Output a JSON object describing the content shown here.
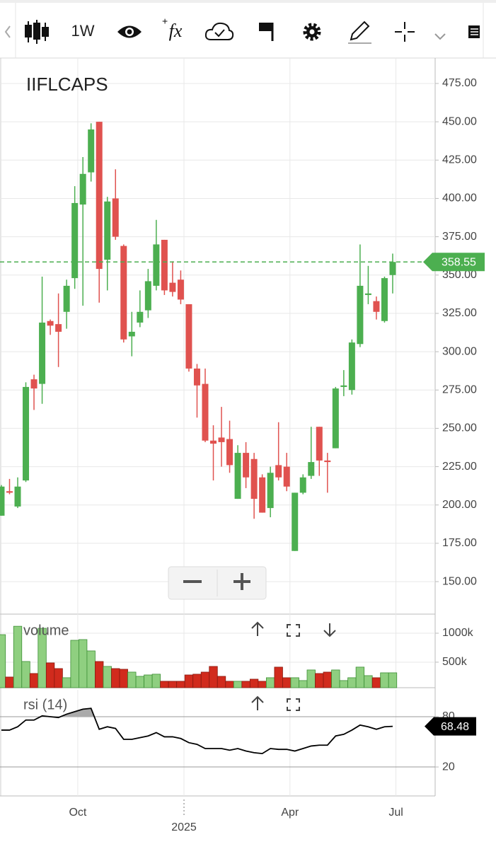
{
  "toolbar": {
    "timeframe": "1W",
    "formula": "fx"
  },
  "chart_data": [
    {
      "type": "candlestick",
      "title": "IIFLCAPS",
      "x": [
        0,
        1,
        2,
        3,
        4,
        5,
        6,
        7,
        8,
        9,
        10,
        11,
        12,
        13,
        14,
        15,
        16,
        17,
        18,
        19,
        20,
        21,
        22,
        23,
        24,
        25,
        26,
        27,
        28,
        29,
        30,
        31,
        32,
        33,
        34,
        35,
        36,
        37,
        38,
        39,
        40,
        41,
        42,
        43,
        44,
        45,
        46,
        47,
        48
      ],
      "open": [
        193,
        209,
        199,
        216,
        282,
        279,
        320,
        318,
        326,
        348,
        396,
        417,
        450,
        360,
        400,
        369,
        310,
        319,
        327,
        343,
        373,
        345,
        347,
        331,
        289,
        279,
        242,
        244,
        243,
        204,
        234,
        230,
        218,
        198,
        226,
        225,
        170,
        208,
        219,
        251,
        229,
        237,
        277,
        275,
        305,
        337,
        333,
        320,
        350
      ],
      "high": [
        213,
        217,
        218,
        280,
        285,
        349,
        321,
        338,
        347,
        408,
        427,
        449,
        450,
        401,
        419,
        370,
        326,
        340,
        354,
        386,
        373,
        359,
        353,
        331,
        292,
        289,
        252,
        264,
        255,
        239,
        241,
        234,
        220,
        225,
        254,
        234,
        208,
        220,
        251,
        251,
        234,
        277,
        288,
        308,
        370,
        356,
        336,
        349,
        364
      ],
      "low": [
        193,
        207,
        198,
        215,
        262,
        266,
        311,
        290,
        315,
        341,
        330,
        411,
        332,
        340,
        373,
        306,
        297,
        316,
        322,
        340,
        337,
        336,
        331,
        287,
        257,
        241,
        216,
        225,
        221,
        204,
        211,
        191,
        195,
        192,
        216,
        209,
        170,
        207,
        217,
        219,
        208,
        237,
        271,
        272,
        303,
        331,
        321,
        319,
        338
      ],
      "close": [
        212,
        208,
        212,
        277,
        276,
        319,
        317,
        313,
        343,
        397,
        416,
        445,
        354,
        398,
        375,
        308,
        313,
        326,
        346,
        370,
        340,
        339,
        334,
        289,
        278,
        242,
        240,
        241,
        226,
        234,
        218,
        204,
        195,
        221,
        218,
        212,
        208,
        218,
        228,
        229,
        228,
        276,
        278,
        306,
        343,
        338,
        326,
        348,
        358.55
      ],
      "up_color": "#4caf50",
      "down_color": "#e0524f",
      "xlim": [
        -0.17,
        53.21
      ],
      "xticks": [
        {
          "value": 9.37,
          "label": "Oct"
        },
        {
          "value": 22.4,
          "label": "2025"
        },
        {
          "value": 35.4,
          "label": "Apr"
        },
        {
          "value": 48.4,
          "label": "Jul"
        }
      ],
      "ylim": [
        128.8,
        491.6
      ],
      "yticks": [
        {
          "value": 150,
          "label": "150.00"
        },
        {
          "value": 175,
          "label": "175.00"
        },
        {
          "value": 200,
          "label": "200.00"
        },
        {
          "value": 225,
          "label": "225.00"
        },
        {
          "value": 250,
          "label": "250.00"
        },
        {
          "value": 275,
          "label": "275.00"
        },
        {
          "value": 300,
          "label": "300.00"
        },
        {
          "value": 325,
          "label": "325.00"
        },
        {
          "value": 350,
          "label": "350.00"
        },
        {
          "value": 375,
          "label": "375.00"
        },
        {
          "value": 400,
          "label": "400.00"
        },
        {
          "value": 425,
          "label": "425.00"
        },
        {
          "value": 450,
          "label": "450.00"
        },
        {
          "value": 475,
          "label": "475.00"
        }
      ],
      "grid": true
    },
    {
      "type": "bar",
      "title": "volume",
      "values": [
        975000,
        244000,
        1120000,
        512000,
        305000,
        1085000,
        488000,
        390000,
        232000,
        878000,
        890000,
        695000,
        512000,
        427000,
        390000,
        378000,
        329000,
        256000,
        280000,
        293000,
        171000,
        171000,
        171000,
        280000,
        293000,
        329000,
        427000,
        256000,
        171000,
        171000,
        171000,
        207000,
        171000,
        232000,
        415000,
        232000,
        232000,
        183000,
        366000,
        305000,
        329000,
        366000,
        183000,
        232000,
        415000,
        268000,
        232000,
        317000,
        317000
      ],
      "up_color": "#8fcf80",
      "down_color": "#d12b1d",
      "ylim": [
        60000,
        1305000
      ],
      "yticks": [
        {
          "value": 500000,
          "label": "500k"
        },
        {
          "value": 1000000,
          "label": "1000k"
        }
      ]
    },
    {
      "type": "line",
      "title": "rsi (14)",
      "values": [
        64,
        64,
        68,
        76,
        76,
        81,
        80,
        79,
        83,
        86,
        89,
        90,
        65,
        68,
        66,
        53,
        53,
        55,
        57,
        61,
        56,
        56,
        54,
        49,
        47,
        42,
        42,
        42,
        40,
        42,
        39,
        37,
        36,
        42,
        41,
        41,
        39,
        42,
        45,
        46,
        46,
        57,
        59,
        64,
        70,
        68,
        65,
        68,
        68.48
      ],
      "color": "#000000",
      "ylim": [
        -14.6,
        112.1
      ],
      "yticks": [
        20,
        80
      ]
    }
  ]
}
